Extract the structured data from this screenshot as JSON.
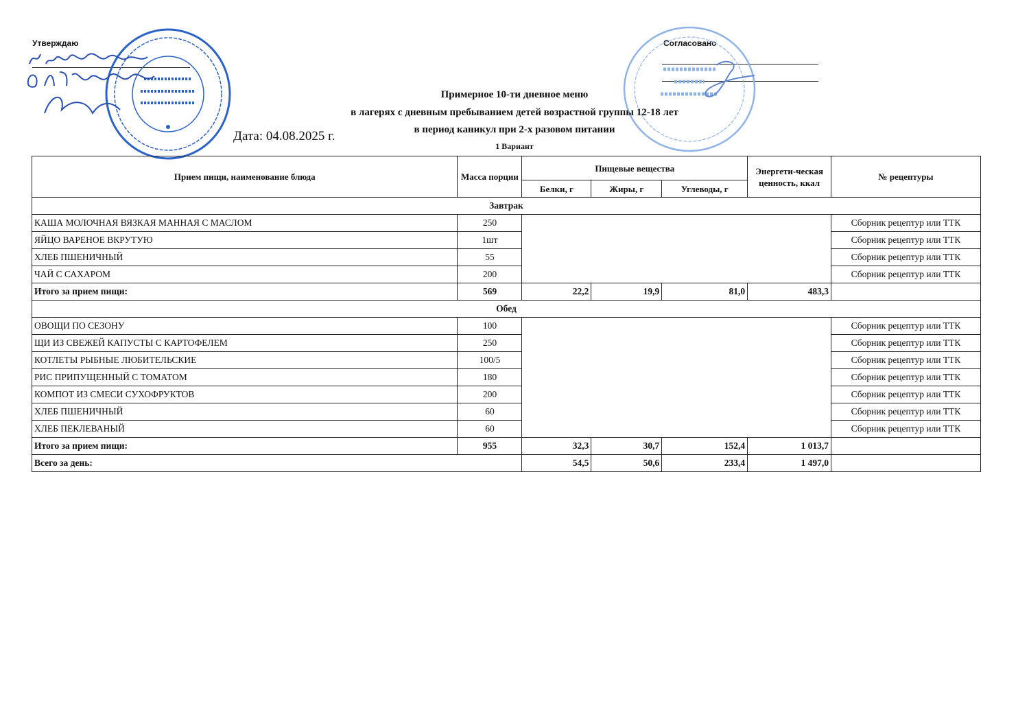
{
  "approval": {
    "label": "Утверждаю",
    "signature_text": "и.о. директора О.Н. Перепелкова",
    "stamp_text": "ГБОУ «НИЖНЕЧИРСКАЯ ШКОЛА-ИНТЕРНАТ» КОМИТЕТ ОБРАЗОВАНИЯ И НАУКИ ВОЛГОГРАДСКОЙ ОБЛАСТИ"
  },
  "agreement": {
    "label": "Согласовано",
    "stamp_text": "Россия * Волгоград * Индивидуальный предприниматель Бэтрякова Ольга Валентиновна ИНН 344402051969 ОГРН 304344435000201"
  },
  "title_lines": [
    "Примерное 10-ти дневное меню",
    "в лагерях с  дневным пребыванием детей возрастной группы 12-18 лет",
    "в период каникул при 2-х разовом питании"
  ],
  "date": "Дата: 04.08.2025 г.",
  "variant": "1 Вариант",
  "colors": {
    "stamp": "#2a62c9",
    "ink": "#111111"
  },
  "table": {
    "headers": {
      "dish": "Прием пищи, наименование блюда",
      "mass": "Масса порции",
      "nutrients": "Пищевые вещества",
      "protein": "Белки, г",
      "fat": "Жиры, г",
      "carbs": "Углеводы, г",
      "energy": "Энергети-ческая ценность, ккал",
      "recipe": "№ рецептуры"
    },
    "sections": [
      {
        "name": "Завтрак",
        "items": [
          {
            "dish": "КАША МОЛОЧНАЯ ВЯЗКАЯ МАННАЯ С МАСЛОМ",
            "mass": "250",
            "recipe": "Сборник рецептур или ТТК"
          },
          {
            "dish": "ЯЙЦО ВАРЕНОЕ ВКРУТУЮ",
            "mass": "1шт",
            "recipe": "Сборник рецептур или ТТК"
          },
          {
            "dish": "ХЛЕБ ПШЕНИЧНЫЙ",
            "mass": "55",
            "recipe": "Сборник рецептур или ТТК"
          },
          {
            "dish": "ЧАЙ С САХАРОМ",
            "mass": "200",
            "recipe": "Сборник рецептур или ТТК"
          }
        ],
        "total": {
          "label": "Итого за прием пищи:",
          "mass": "569",
          "protein": "22,2",
          "fat": "19,9",
          "carbs": "81,0",
          "energy": "483,3"
        }
      },
      {
        "name": "Обед",
        "items": [
          {
            "dish": "ОВОЩИ ПО СЕЗОНУ",
            "mass": "100",
            "recipe": "Сборник рецептур или ТТК"
          },
          {
            "dish": "ЩИ ИЗ СВЕЖЕЙ КАПУСТЫ С КАРТОФЕЛЕМ",
            "mass": "250",
            "recipe": "Сборник рецептур или ТТК"
          },
          {
            "dish": "КОТЛЕТЫ РЫБНЫЕ ЛЮБИТЕЛЬСКИЕ",
            "mass": "100/5",
            "recipe": "Сборник рецептур или ТТК"
          },
          {
            "dish": "РИС ПРИПУЩЕННЫЙ С ТОМАТОМ",
            "mass": "180",
            "recipe": "Сборник рецептур или ТТК"
          },
          {
            "dish": "КОМПОТ ИЗ СМЕСИ СУХОФРУКТОВ",
            "mass": "200",
            "recipe": "Сборник рецептур или ТТК"
          },
          {
            "dish": "ХЛЕБ ПШЕНИЧНЫЙ",
            "mass": "60",
            "recipe": "Сборник рецептур или ТТК"
          },
          {
            "dish": "ХЛЕБ ПЕКЛЕВАНЫЙ",
            "mass": "60",
            "recipe": "Сборник рецептур или ТТК"
          }
        ],
        "total": {
          "label": "Итого за прием пищи:",
          "mass": "955",
          "protein": "32,3",
          "fat": "30,7",
          "carbs": "152,4",
          "energy": "1 013,7"
        }
      }
    ],
    "day_total": {
      "label": "Всего за день:",
      "protein": "54,5",
      "fat": "50,6",
      "carbs": "233,4",
      "energy": "1 497,0"
    }
  }
}
